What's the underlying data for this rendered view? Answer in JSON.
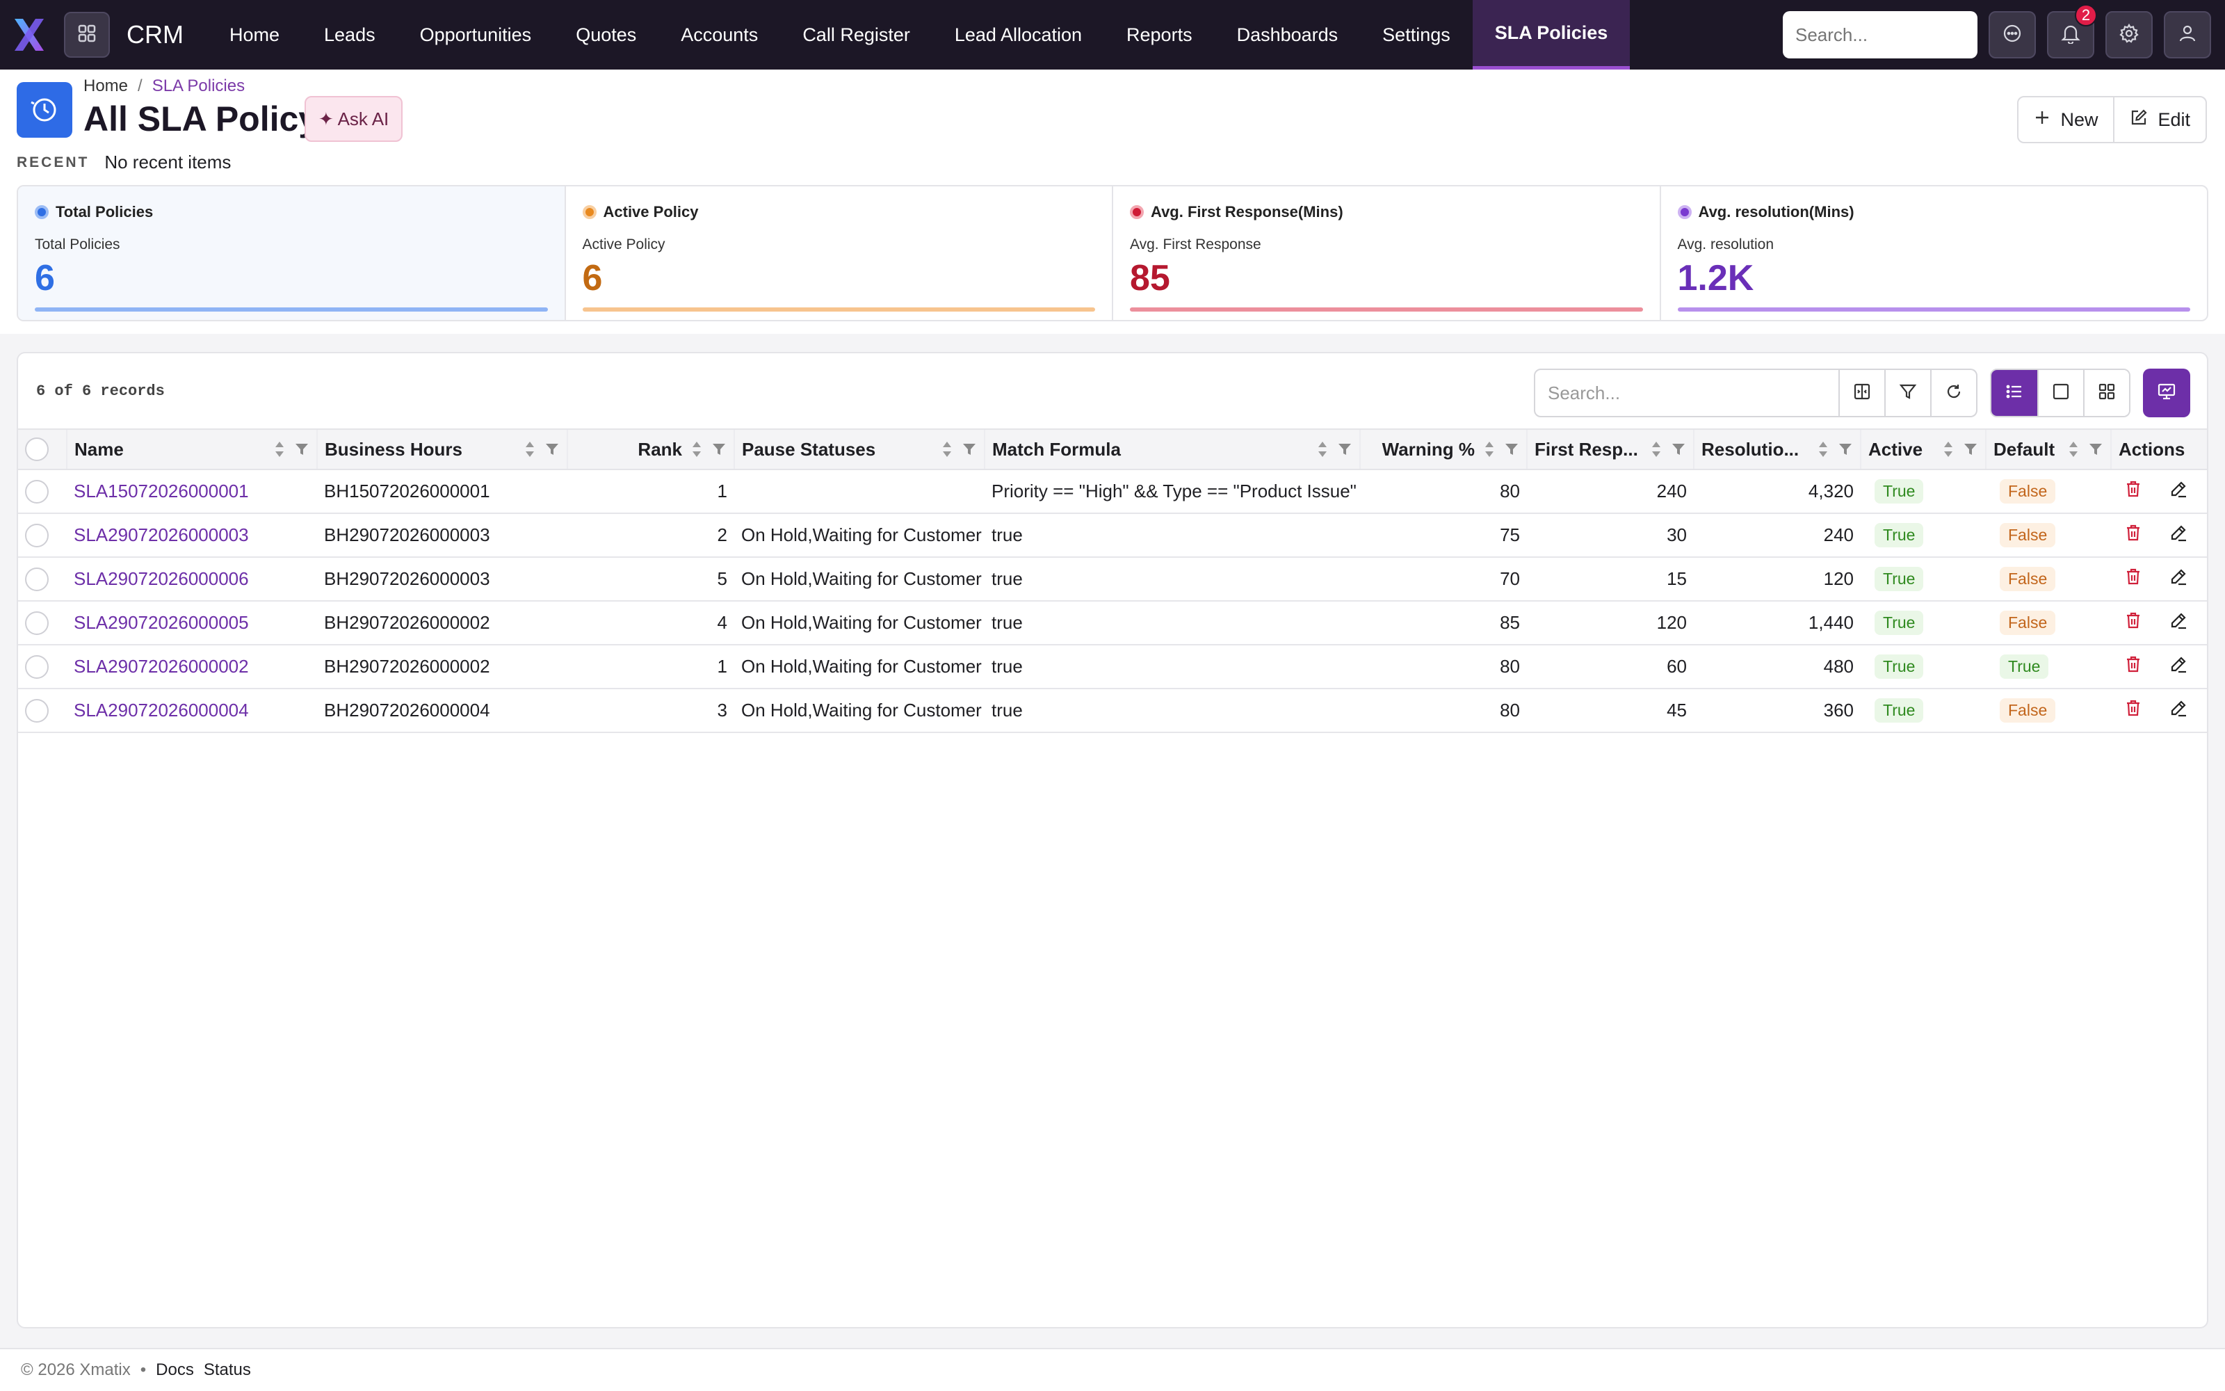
{
  "app": {
    "brand": "CRM"
  },
  "nav": {
    "items": [
      {
        "label": "Home",
        "active": false
      },
      {
        "label": "Leads",
        "active": false
      },
      {
        "label": "Opportunities",
        "active": false
      },
      {
        "label": "Quotes",
        "active": false
      },
      {
        "label": "Accounts",
        "active": false
      },
      {
        "label": "Call Register",
        "active": false
      },
      {
        "label": "Lead Allocation",
        "active": false
      },
      {
        "label": "Reports",
        "active": false
      },
      {
        "label": "Dashboards",
        "active": false
      },
      {
        "label": "Settings",
        "active": false
      },
      {
        "label": "SLA Policies",
        "active": true
      }
    ],
    "search_placeholder": "Search...",
    "notification_count": "2"
  },
  "breadcrumb": {
    "home": "Home",
    "separator": "/",
    "current": "SLA Policies"
  },
  "page": {
    "title": "All SLA Policy",
    "ask_ai": "✦ Ask AI",
    "new_label": "New",
    "edit_label": "Edit"
  },
  "recent": {
    "label": "RECENT",
    "value": "No recent items"
  },
  "kpis": [
    {
      "title": "Total Policies",
      "sub": "Total Policies",
      "value": "6",
      "color": "#2f6fe4",
      "bar": "#8fb4f5"
    },
    {
      "title": "Active Policy",
      "sub": "Active Policy",
      "value": "6",
      "color": "#c26a12",
      "bar": "#f7c48e"
    },
    {
      "title": "Avg. First Response(Mins)",
      "sub": "Avg. First Response",
      "value": "85",
      "color": "#b5182f",
      "bar": "#ec8f9c"
    },
    {
      "title": "Avg. resolution(Mins)",
      "sub": "Avg. resolution",
      "value": "1.2K",
      "color": "#6a2fb8",
      "bar": "#b790ec"
    }
  ],
  "grid": {
    "record_count": "6 of 6 records",
    "search_placeholder": "Search...",
    "columns": [
      {
        "label": "Name"
      },
      {
        "label": "Business Hours"
      },
      {
        "label": "Rank"
      },
      {
        "label": "Pause Statuses"
      },
      {
        "label": "Match Formula"
      },
      {
        "label": "Warning %"
      },
      {
        "label": "First Resp..."
      },
      {
        "label": "Resolutio..."
      },
      {
        "label": "Active"
      },
      {
        "label": "Default"
      },
      {
        "label": "Actions"
      }
    ],
    "rows": [
      {
        "name": "SLA15072026000001",
        "business_hours": "BH15072026000001",
        "rank": "1",
        "pause": "",
        "formula": "Priority == \"High\" && Type == \"Product Issue\"",
        "warning": "80",
        "first_resp": "240",
        "resolution": "4,320",
        "active": "True",
        "default": "False"
      },
      {
        "name": "SLA29072026000003",
        "business_hours": "BH29072026000003",
        "rank": "2",
        "pause": "On Hold,Waiting for Customer",
        "formula": "true",
        "warning": "75",
        "first_resp": "30",
        "resolution": "240",
        "active": "True",
        "default": "False"
      },
      {
        "name": "SLA29072026000006",
        "business_hours": "BH29072026000003",
        "rank": "5",
        "pause": "On Hold,Waiting for Customer",
        "formula": "true",
        "warning": "70",
        "first_resp": "15",
        "resolution": "120",
        "active": "True",
        "default": "False"
      },
      {
        "name": "SLA29072026000005",
        "business_hours": "BH29072026000002",
        "rank": "4",
        "pause": "On Hold,Waiting for Customer",
        "formula": "true",
        "warning": "85",
        "first_resp": "120",
        "resolution": "1,440",
        "active": "True",
        "default": "False"
      },
      {
        "name": "SLA29072026000002",
        "business_hours": "BH29072026000002",
        "rank": "1",
        "pause": "On Hold,Waiting for Customer",
        "formula": "true",
        "warning": "80",
        "first_resp": "60",
        "resolution": "480",
        "active": "True",
        "default": "True"
      },
      {
        "name": "SLA29072026000004",
        "business_hours": "BH29072026000004",
        "rank": "3",
        "pause": "On Hold,Waiting for Customer",
        "formula": "true",
        "warning": "80",
        "first_resp": "45",
        "resolution": "360",
        "active": "True",
        "default": "False"
      }
    ]
  },
  "footer": {
    "copyright": "© 2026 Xmatix",
    "dot": "•",
    "docs": "Docs",
    "status": "Status"
  }
}
